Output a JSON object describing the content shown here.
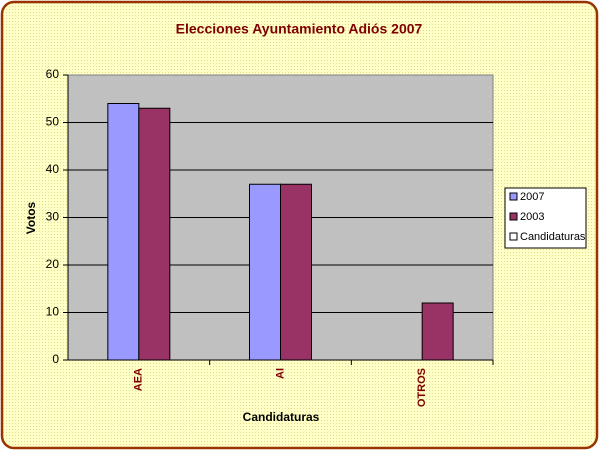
{
  "chart_data": {
    "type": "bar",
    "title": "Elecciones Ayuntamiento Adiós  2007",
    "x_label": "Candidaturas",
    "y_label": "Votos",
    "categories": [
      "AEA",
      "AI",
      "OTROS"
    ],
    "series": [
      {
        "name": "2007",
        "color": "#9999ff",
        "values": [
          54,
          37,
          null
        ]
      },
      {
        "name": "2003",
        "color": "#993366",
        "values": [
          53,
          37,
          12
        ]
      },
      {
        "name": "Candidaturas",
        "color": "#ffffff",
        "values": [
          null,
          null,
          null
        ]
      }
    ],
    "ylim": [
      0,
      60
    ],
    "yticks": [
      0,
      10,
      20,
      30,
      40,
      50,
      60
    ],
    "grid": true,
    "legend": "right"
  }
}
